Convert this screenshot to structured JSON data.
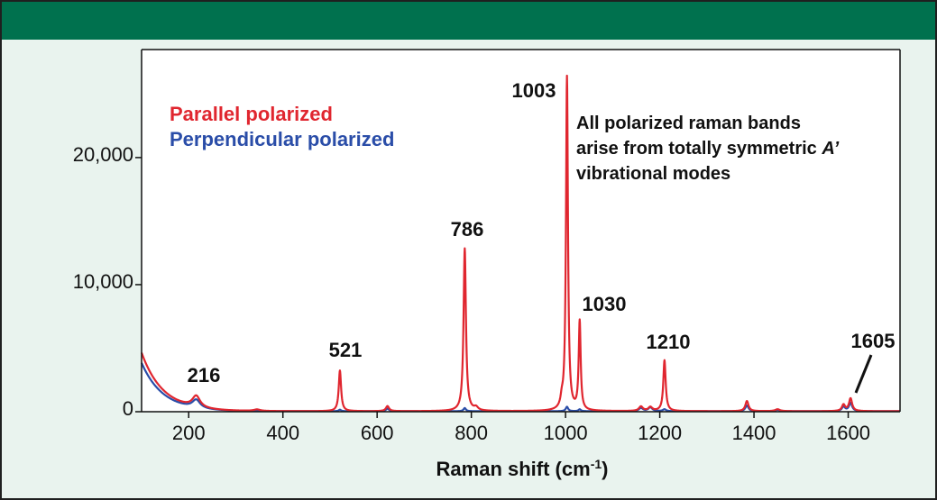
{
  "chart_data": {
    "type": "line",
    "title": "",
    "xlabel": "Raman shift (cm",
    "xlabel_sup": "-1",
    "xlabel_close": ")",
    "ylabel": "",
    "xlim": [
      100,
      1710
    ],
    "ylim": [
      0,
      28500
    ],
    "xticks": [
      200,
      400,
      600,
      800,
      1000,
      1200,
      1400,
      1600
    ],
    "xtick_labels": [
      "200",
      "400",
      "600",
      "800",
      "1000",
      "1200",
      "1400",
      "1600"
    ],
    "yticks": [
      0,
      10000,
      20000
    ],
    "ytick_labels": [
      "0",
      "10,000",
      "20,000"
    ],
    "grid": false,
    "legend": {
      "placement": "top-left"
    },
    "series": [
      {
        "name": "Parallel polarized",
        "color": "#e0262f",
        "baseline_decay": {
          "amplitude": 4600,
          "tau": 45
        },
        "peaks": [
          {
            "x": 216,
            "height": 900,
            "width": 10
          },
          {
            "x": 345,
            "height": 120,
            "width": 8
          },
          {
            "x": 521,
            "height": 3200,
            "width": 3
          },
          {
            "x": 622,
            "height": 400,
            "width": 4
          },
          {
            "x": 786,
            "height": 12800,
            "width": 3
          },
          {
            "x": 810,
            "height": 250,
            "width": 5
          },
          {
            "x": 1003,
            "height": 26300,
            "width": 2.5
          },
          {
            "x": 992,
            "height": 600,
            "width": 3
          },
          {
            "x": 1030,
            "height": 7000,
            "width": 2.5
          },
          {
            "x": 1160,
            "height": 350,
            "width": 5
          },
          {
            "x": 1180,
            "height": 300,
            "width": 5
          },
          {
            "x": 1210,
            "height": 4000,
            "width": 3
          },
          {
            "x": 1385,
            "height": 800,
            "width": 4
          },
          {
            "x": 1450,
            "height": 150,
            "width": 6
          },
          {
            "x": 1590,
            "height": 500,
            "width": 4
          },
          {
            "x": 1605,
            "height": 1000,
            "width": 4
          }
        ]
      },
      {
        "name": "Perpendicular polarized",
        "color": "#2a4da8",
        "baseline_decay": {
          "amplitude": 3800,
          "tau": 45
        },
        "peaks": [
          {
            "x": 216,
            "height": 650,
            "width": 10
          },
          {
            "x": 521,
            "height": 120,
            "width": 3
          },
          {
            "x": 622,
            "height": 200,
            "width": 4
          },
          {
            "x": 786,
            "height": 250,
            "width": 3
          },
          {
            "x": 1003,
            "height": 350,
            "width": 3
          },
          {
            "x": 1030,
            "height": 150,
            "width": 3
          },
          {
            "x": 1160,
            "height": 250,
            "width": 5
          },
          {
            "x": 1180,
            "height": 300,
            "width": 5
          },
          {
            "x": 1210,
            "height": 150,
            "width": 4
          },
          {
            "x": 1385,
            "height": 450,
            "width": 4
          },
          {
            "x": 1450,
            "height": 100,
            "width": 6
          },
          {
            "x": 1590,
            "height": 350,
            "width": 4
          },
          {
            "x": 1605,
            "height": 650,
            "width": 4
          }
        ]
      }
    ],
    "peak_labels": [
      {
        "text": "216",
        "x": 216
      },
      {
        "text": "521",
        "x": 521
      },
      {
        "text": "786",
        "x": 786
      },
      {
        "text": "1003",
        "x": 1003
      },
      {
        "text": "1030",
        "x": 1030
      },
      {
        "text": "1210",
        "x": 1210
      },
      {
        "text": "1605",
        "x": 1605
      }
    ],
    "annotation": {
      "line1": "All polarized raman bands",
      "line2_prefix": "arise from totally symmetric ",
      "line2_italic": "A’",
      "line3": "vibrational modes"
    }
  }
}
